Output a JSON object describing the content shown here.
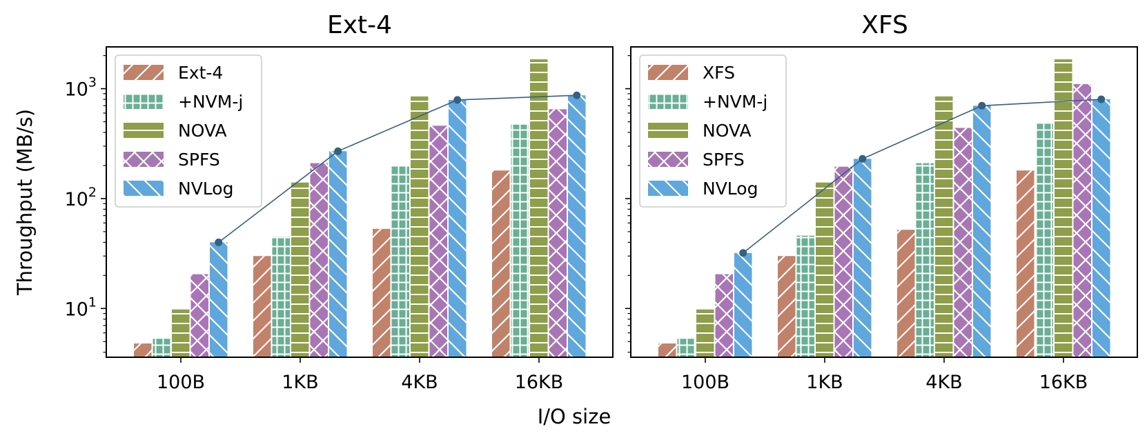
{
  "chart_data": {
    "type": "bar",
    "scale": "log",
    "xlabel": "I/O size",
    "ylabel": "Throughput (MB/s)",
    "categories": [
      "100B",
      "1KB",
      "4KB",
      "16KB"
    ],
    "ylim": [
      3.6,
      2400
    ],
    "yticks": [
      {
        "value": 10,
        "base": "10",
        "exp": "1"
      },
      {
        "value": 100,
        "base": "10",
        "exp": "2"
      },
      {
        "value": 1000,
        "base": "10",
        "exp": "3"
      }
    ],
    "line_series": "NVLog",
    "panels": [
      {
        "title": "Ext-4",
        "legend": "top-left",
        "series": [
          {
            "name": "Ext-4",
            "color": "#c0826a",
            "hatch": "diagonal-forward",
            "values": [
              4.8,
              30,
              53,
              180
            ]
          },
          {
            "name": "+NVM-j",
            "color": "#6aae95",
            "hatch": "grid",
            "values": [
              5.3,
              45,
              200,
              470
            ]
          },
          {
            "name": "NOVA",
            "color": "#8f9e4a",
            "hatch": "horizontal",
            "values": [
              9.8,
              140,
              850,
              1850
            ]
          },
          {
            "name": "SPFS",
            "color": "#a876b5",
            "hatch": "cross",
            "values": [
              20.5,
              210,
              460,
              650
            ]
          },
          {
            "name": "NVLog",
            "color": "#5fa7dc",
            "hatch": "diagonal-back",
            "values": [
              40,
              270,
              790,
              870
            ]
          }
        ]
      },
      {
        "title": "XFS",
        "legend": "top-left",
        "series": [
          {
            "name": "XFS",
            "color": "#c0826a",
            "hatch": "diagonal-forward",
            "values": [
              4.8,
              30,
              52,
              180
            ]
          },
          {
            "name": "+NVM-j",
            "color": "#6aae95",
            "hatch": "grid",
            "values": [
              5.3,
              46,
              210,
              480
            ]
          },
          {
            "name": "NOVA",
            "color": "#8f9e4a",
            "hatch": "horizontal",
            "values": [
              9.8,
              140,
              850,
              1850
            ]
          },
          {
            "name": "SPFS",
            "color": "#a876b5",
            "hatch": "cross",
            "values": [
              20.5,
              195,
              440,
              1100
            ]
          },
          {
            "name": "NVLog",
            "color": "#5fa7dc",
            "hatch": "diagonal-back",
            "values": [
              32,
              230,
              700,
              800
            ]
          }
        ]
      }
    ]
  }
}
